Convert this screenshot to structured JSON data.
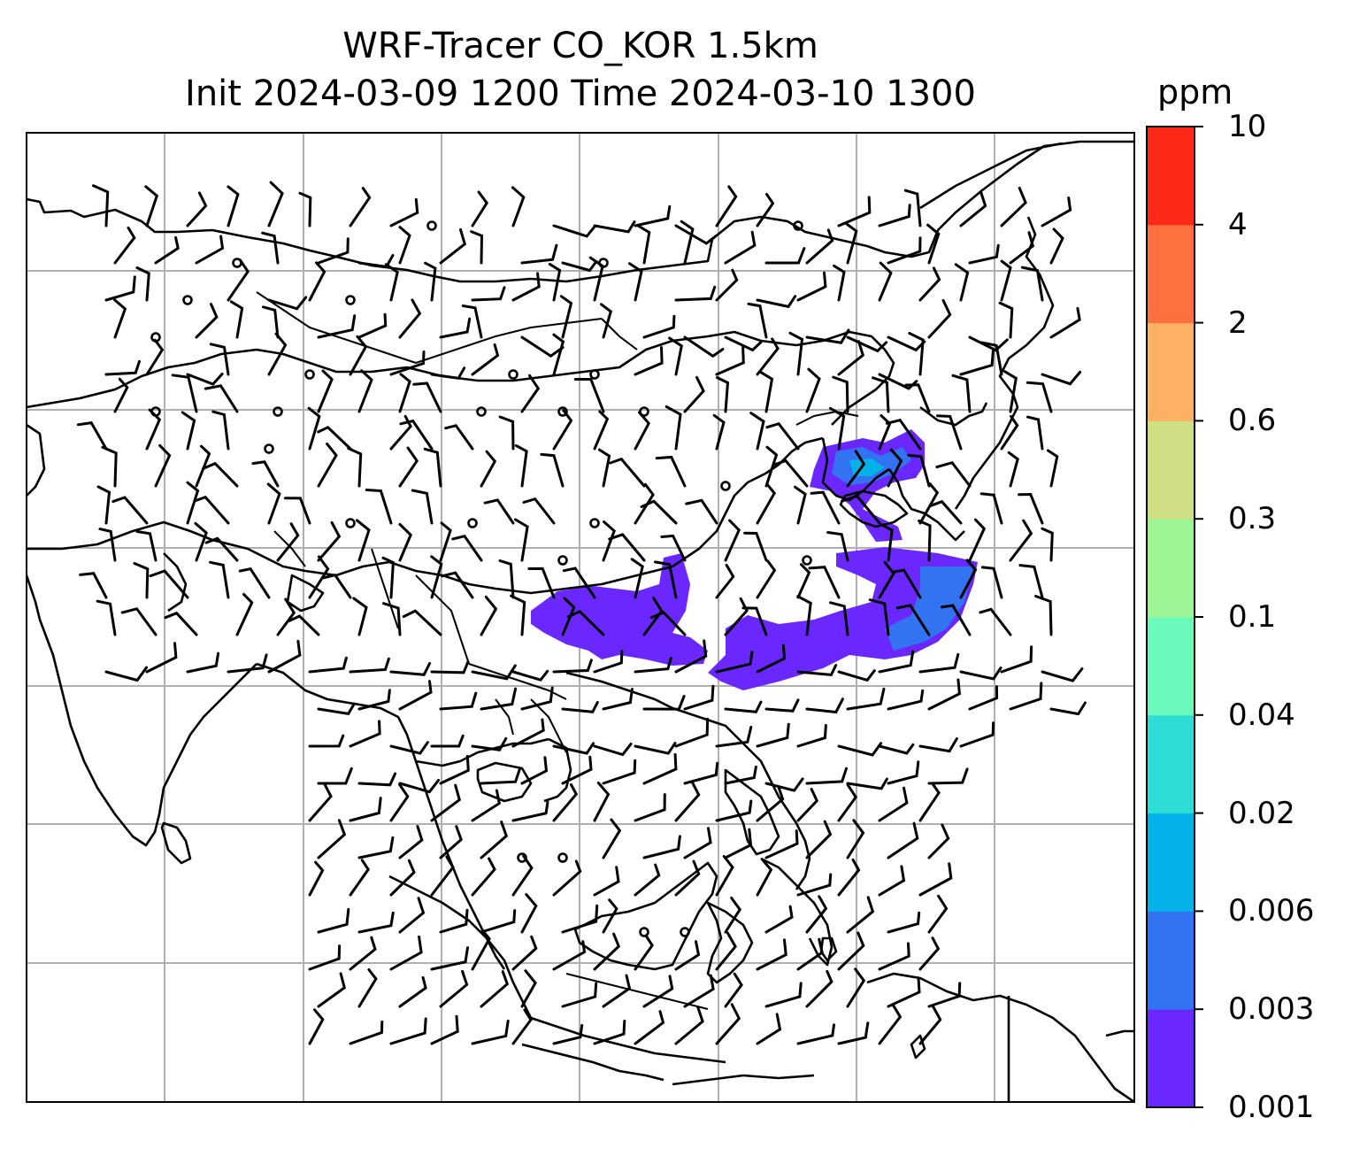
{
  "title_line1": "WRF-Tracer CO_KOR 1.5km",
  "title_line2": "Init 2024-03-09 1200 Time 2024-03-10 1300",
  "colorbar": {
    "unit": "ppm",
    "levels": [
      "0.001",
      "0.003",
      "0.006",
      "0.02",
      "0.04",
      "0.1",
      "0.3",
      "0.6",
      "2",
      "4",
      "10"
    ],
    "colors": [
      "#6a28ff",
      "#3273f2",
      "#04b2ea",
      "#2ddcd4",
      "#6bf9bc",
      "#9df695",
      "#cfe084",
      "#fdb162",
      "#ff7040",
      "#ff2717"
    ]
  },
  "map": {
    "background": "#ffffff",
    "gridlines": true,
    "grid_color": "#b0b0b0",
    "coastline_color": "#000000",
    "features": [
      "coastlines",
      "country borders",
      "wind barbs",
      "tracer concentration"
    ]
  }
}
